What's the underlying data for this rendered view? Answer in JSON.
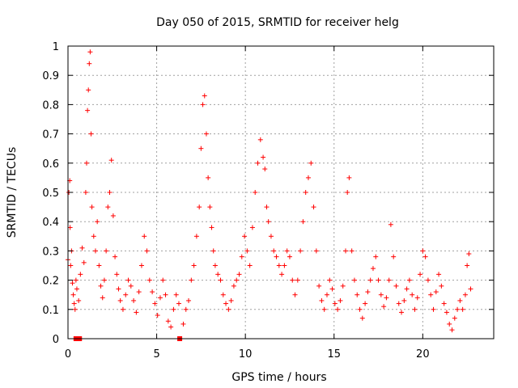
{
  "chart_data": {
    "type": "scatter",
    "title": "Day 050 of 2015, SRMTID for receiver helg",
    "xlabel": "GPS time / hours",
    "ylabel": "SRMTID / TECUs",
    "xlim": [
      0,
      24
    ],
    "ylim": [
      0,
      1
    ],
    "xticks": [
      0,
      5,
      10,
      15,
      20
    ],
    "xtick_labels": [
      "0",
      "5",
      "10",
      "15",
      "20"
    ],
    "yticks": [
      0,
      0.1,
      0.2,
      0.3,
      0.4,
      0.5,
      0.6,
      0.7,
      0.8,
      0.9,
      1
    ],
    "ytick_labels": [
      "0",
      "0.1",
      "0.2",
      "0.3",
      "0.4",
      "0.5",
      "0.6",
      "0.7",
      "0.8",
      "0.9",
      "1"
    ],
    "grid": true,
    "marker": "+",
    "color": "#ff0000",
    "data_range_hours": [
      0,
      22.7
    ],
    "zero_points_x": [
      0.45,
      0.65,
      6.3
    ],
    "series": [
      {
        "name": "SRMTID",
        "points": [
          [
            0.0,
            0.27
          ],
          [
            0.05,
            0.5
          ],
          [
            0.1,
            0.54
          ],
          [
            0.12,
            0.38
          ],
          [
            0.15,
            0.25
          ],
          [
            0.2,
            0.3
          ],
          [
            0.25,
            0.19
          ],
          [
            0.3,
            0.15
          ],
          [
            0.35,
            0.12
          ],
          [
            0.4,
            0.1
          ],
          [
            0.45,
            0.2
          ],
          [
            0.5,
            0.17
          ],
          [
            0.6,
            0.13
          ],
          [
            0.7,
            0.22
          ],
          [
            0.8,
            0.31
          ],
          [
            0.9,
            0.26
          ],
          [
            1.0,
            0.5
          ],
          [
            1.05,
            0.6
          ],
          [
            1.1,
            0.78
          ],
          [
            1.15,
            0.85
          ],
          [
            1.2,
            0.94
          ],
          [
            1.25,
            0.98
          ],
          [
            1.3,
            0.7
          ],
          [
            1.35,
            0.45
          ],
          [
            1.45,
            0.35
          ],
          [
            1.55,
            0.3
          ],
          [
            1.65,
            0.4
          ],
          [
            1.75,
            0.25
          ],
          [
            1.85,
            0.18
          ],
          [
            1.95,
            0.14
          ],
          [
            2.05,
            0.2
          ],
          [
            2.15,
            0.3
          ],
          [
            2.25,
            0.45
          ],
          [
            2.35,
            0.5
          ],
          [
            2.45,
            0.61
          ],
          [
            2.55,
            0.42
          ],
          [
            2.65,
            0.28
          ],
          [
            2.75,
            0.22
          ],
          [
            2.85,
            0.17
          ],
          [
            2.95,
            0.13
          ],
          [
            3.1,
            0.1
          ],
          [
            3.25,
            0.15
          ],
          [
            3.4,
            0.2
          ],
          [
            3.55,
            0.18
          ],
          [
            3.7,
            0.13
          ],
          [
            3.85,
            0.09
          ],
          [
            4.0,
            0.16
          ],
          [
            4.15,
            0.25
          ],
          [
            4.3,
            0.35
          ],
          [
            4.45,
            0.3
          ],
          [
            4.6,
            0.2
          ],
          [
            4.75,
            0.16
          ],
          [
            4.9,
            0.12
          ],
          [
            5.05,
            0.08
          ],
          [
            5.2,
            0.14
          ],
          [
            5.35,
            0.2
          ],
          [
            5.5,
            0.15
          ],
          [
            5.65,
            0.06
          ],
          [
            5.8,
            0.04
          ],
          [
            5.95,
            0.1
          ],
          [
            6.1,
            0.15
          ],
          [
            6.25,
            0.12
          ],
          [
            6.5,
            0.05
          ],
          [
            6.65,
            0.1
          ],
          [
            6.8,
            0.13
          ],
          [
            6.95,
            0.2
          ],
          [
            7.1,
            0.25
          ],
          [
            7.25,
            0.35
          ],
          [
            7.4,
            0.45
          ],
          [
            7.5,
            0.65
          ],
          [
            7.6,
            0.8
          ],
          [
            7.7,
            0.83
          ],
          [
            7.8,
            0.7
          ],
          [
            7.9,
            0.55
          ],
          [
            8.0,
            0.45
          ],
          [
            8.1,
            0.38
          ],
          [
            8.2,
            0.3
          ],
          [
            8.3,
            0.25
          ],
          [
            8.45,
            0.22
          ],
          [
            8.6,
            0.2
          ],
          [
            8.75,
            0.15
          ],
          [
            8.9,
            0.12
          ],
          [
            9.05,
            0.1
          ],
          [
            9.2,
            0.13
          ],
          [
            9.35,
            0.18
          ],
          [
            9.5,
            0.2
          ],
          [
            9.65,
            0.22
          ],
          [
            9.8,
            0.28
          ],
          [
            9.95,
            0.35
          ],
          [
            10.1,
            0.3
          ],
          [
            10.25,
            0.25
          ],
          [
            10.4,
            0.38
          ],
          [
            10.55,
            0.5
          ],
          [
            10.7,
            0.6
          ],
          [
            10.85,
            0.68
          ],
          [
            11.0,
            0.62
          ],
          [
            11.1,
            0.58
          ],
          [
            11.2,
            0.45
          ],
          [
            11.3,
            0.4
          ],
          [
            11.45,
            0.35
          ],
          [
            11.6,
            0.3
          ],
          [
            11.75,
            0.28
          ],
          [
            11.9,
            0.25
          ],
          [
            12.05,
            0.22
          ],
          [
            12.2,
            0.25
          ],
          [
            12.35,
            0.3
          ],
          [
            12.5,
            0.28
          ],
          [
            12.65,
            0.2
          ],
          [
            12.8,
            0.15
          ],
          [
            12.95,
            0.2
          ],
          [
            13.1,
            0.3
          ],
          [
            13.25,
            0.4
          ],
          [
            13.4,
            0.5
          ],
          [
            13.55,
            0.55
          ],
          [
            13.7,
            0.6
          ],
          [
            13.85,
            0.45
          ],
          [
            14.0,
            0.3
          ],
          [
            14.15,
            0.18
          ],
          [
            14.3,
            0.13
          ],
          [
            14.45,
            0.1
          ],
          [
            14.6,
            0.15
          ],
          [
            14.75,
            0.2
          ],
          [
            14.9,
            0.17
          ],
          [
            15.05,
            0.12
          ],
          [
            15.2,
            0.1
          ],
          [
            15.35,
            0.13
          ],
          [
            15.5,
            0.18
          ],
          [
            15.65,
            0.3
          ],
          [
            15.75,
            0.5
          ],
          [
            15.85,
            0.55
          ],
          [
            16.0,
            0.3
          ],
          [
            16.15,
            0.2
          ],
          [
            16.3,
            0.15
          ],
          [
            16.45,
            0.1
          ],
          [
            16.6,
            0.07
          ],
          [
            16.75,
            0.12
          ],
          [
            16.9,
            0.16
          ],
          [
            17.05,
            0.2
          ],
          [
            17.2,
            0.24
          ],
          [
            17.35,
            0.28
          ],
          [
            17.5,
            0.2
          ],
          [
            17.65,
            0.15
          ],
          [
            17.8,
            0.11
          ],
          [
            17.95,
            0.14
          ],
          [
            18.1,
            0.2
          ],
          [
            18.2,
            0.39
          ],
          [
            18.35,
            0.28
          ],
          [
            18.5,
            0.18
          ],
          [
            18.65,
            0.12
          ],
          [
            18.8,
            0.09
          ],
          [
            18.95,
            0.13
          ],
          [
            19.1,
            0.17
          ],
          [
            19.25,
            0.2
          ],
          [
            19.4,
            0.15
          ],
          [
            19.55,
            0.1
          ],
          [
            19.7,
            0.14
          ],
          [
            19.85,
            0.22
          ],
          [
            20.0,
            0.3
          ],
          [
            20.15,
            0.28
          ],
          [
            20.3,
            0.2
          ],
          [
            20.45,
            0.15
          ],
          [
            20.6,
            0.1
          ],
          [
            20.75,
            0.16
          ],
          [
            20.9,
            0.22
          ],
          [
            21.05,
            0.18
          ],
          [
            21.2,
            0.12
          ],
          [
            21.35,
            0.09
          ],
          [
            21.5,
            0.05
          ],
          [
            21.65,
            0.03
          ],
          [
            21.8,
            0.07
          ],
          [
            21.95,
            0.1
          ],
          [
            22.1,
            0.13
          ],
          [
            22.25,
            0.1
          ],
          [
            22.4,
            0.15
          ],
          [
            22.5,
            0.25
          ],
          [
            22.6,
            0.29
          ],
          [
            22.7,
            0.17
          ]
        ]
      }
    ]
  }
}
